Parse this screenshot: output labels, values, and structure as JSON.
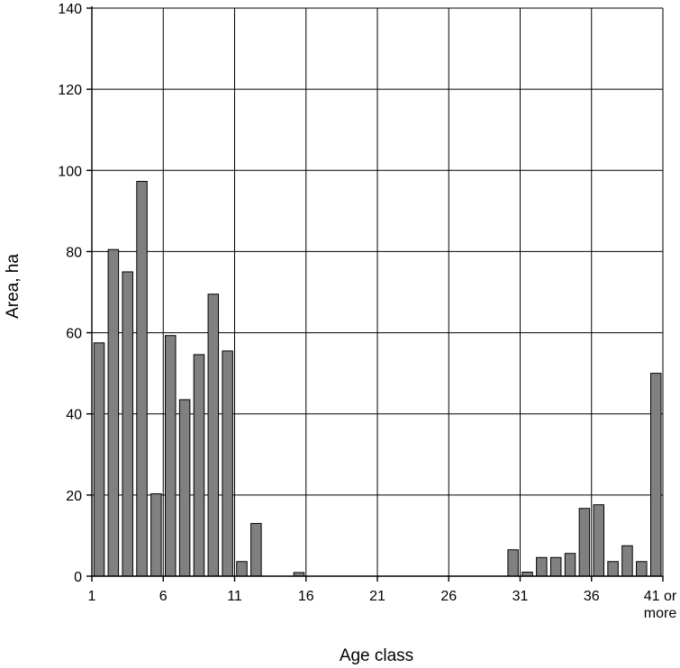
{
  "chart_data": {
    "type": "bar",
    "xlabel": "Age class",
    "ylabel": "Area, ha",
    "ylim": [
      0,
      140
    ],
    "yticks": [
      0,
      20,
      40,
      60,
      80,
      100,
      120,
      140
    ],
    "grid": true,
    "categories": [
      "1",
      "2",
      "3",
      "4",
      "5",
      "6",
      "7",
      "8",
      "9",
      "10",
      "11",
      "12",
      "13",
      "14",
      "15",
      "16",
      "17",
      "18",
      "19",
      "20",
      "21",
      "22",
      "23",
      "24",
      "25",
      "26",
      "27",
      "28",
      "29",
      "30",
      "31",
      "32",
      "33",
      "34",
      "35",
      "36",
      "37",
      "38",
      "39",
      "40",
      "41 or more"
    ],
    "tick_categories": [
      "1",
      "6",
      "11",
      "16",
      "21",
      "26",
      "31",
      "36"
    ],
    "last_tick_label_lines": [
      "41 or",
      "more"
    ],
    "values": [
      57.5,
      80.5,
      75,
      97.3,
      20.3,
      59.3,
      43.5,
      54.6,
      69.5,
      55.5,
      3.6,
      13,
      0,
      0,
      0.9,
      0,
      0,
      0,
      0,
      0,
      0,
      0,
      0,
      0,
      0,
      0,
      0,
      0,
      0,
      6.5,
      1,
      4.6,
      4.6,
      5.6,
      16.7,
      17.6,
      3.6,
      7.5,
      3.6,
      0,
      50
    ],
    "bar_color": "#808080"
  }
}
